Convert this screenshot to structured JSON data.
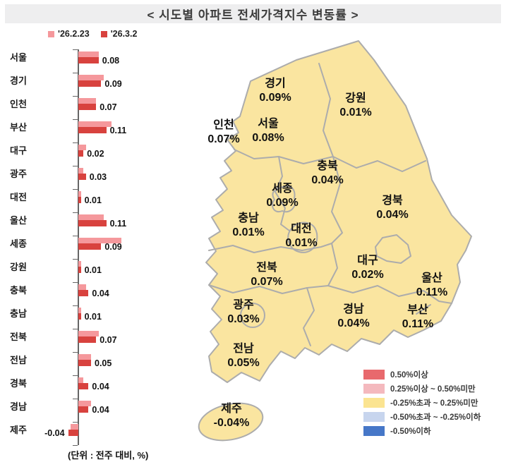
{
  "title": "< 시도별 아파트 전세가격지수 변동률 >",
  "unit_note": "(단위 : 전주 대비, %)",
  "bar_legend": [
    {
      "label": "'26.2.23",
      "color": "#f5989c"
    },
    {
      "label": "'26.3.2",
      "color": "#d8423e"
    }
  ],
  "chart_data": {
    "type": "bar",
    "orientation": "horizontal",
    "title": "시도별 아파트 전세가격지수 변동률",
    "unit": "전주 대비, %",
    "categories": [
      "서울",
      "경기",
      "인천",
      "부산",
      "대구",
      "광주",
      "대전",
      "울산",
      "세종",
      "강원",
      "충북",
      "충남",
      "전북",
      "전남",
      "경북",
      "경남",
      "제주"
    ],
    "series": [
      {
        "name": "'26.2.23",
        "color": "#f5989c",
        "values": [
          0.08,
          0.1,
          0.07,
          0.13,
          0.03,
          0.02,
          0.01,
          0.1,
          0.17,
          0.01,
          0.03,
          0.01,
          0.08,
          0.05,
          0.02,
          0.05,
          -0.03
        ]
      },
      {
        "name": "'26.3.2",
        "color": "#d8423e",
        "values": [
          0.08,
          0.09,
          0.07,
          0.11,
          0.02,
          0.03,
          0.01,
          0.11,
          0.09,
          0.01,
          0.04,
          0.01,
          0.07,
          0.05,
          0.04,
          0.04,
          -0.04
        ]
      }
    ],
    "value_labels_series": "'26.3.2",
    "xlim": [
      -0.06,
      0.18
    ],
    "grid": false,
    "legend_position": "top-left"
  },
  "map": {
    "fill_color": "#fae5a0",
    "border_color": "#acacac",
    "regions": [
      {
        "name": "경기",
        "value": "0.09%"
      },
      {
        "name": "강원",
        "value": "0.01%"
      },
      {
        "name": "인천",
        "value": "0.07%"
      },
      {
        "name": "서울",
        "value": "0.08%"
      },
      {
        "name": "충북",
        "value": "0.04%"
      },
      {
        "name": "세종",
        "value": "0.09%"
      },
      {
        "name": "충남",
        "value": "0.01%"
      },
      {
        "name": "대전",
        "value": "0.01%"
      },
      {
        "name": "경북",
        "value": "0.04%"
      },
      {
        "name": "전북",
        "value": "0.07%"
      },
      {
        "name": "대구",
        "value": "0.02%"
      },
      {
        "name": "울산",
        "value": "0.11%"
      },
      {
        "name": "광주",
        "value": "0.03%"
      },
      {
        "name": "경남",
        "value": "0.04%"
      },
      {
        "name": "부산",
        "value": "0.11%"
      },
      {
        "name": "전남",
        "value": "0.05%"
      },
      {
        "name": "제주",
        "value": "-0.04%"
      }
    ],
    "legend": [
      {
        "color": "#e8696d",
        "label": "0.50%이상"
      },
      {
        "color": "#f4b9be",
        "label": "0.25%이상 ~ 0.50%미만"
      },
      {
        "color": "#fbe491",
        "label": "-0.25%초과 ~ 0.25%미만"
      },
      {
        "color": "#c7d5ee",
        "label": "-0.50%초과 ~ -0.25%이하"
      },
      {
        "color": "#4677c8",
        "label": "-0.50%이하"
      }
    ]
  }
}
